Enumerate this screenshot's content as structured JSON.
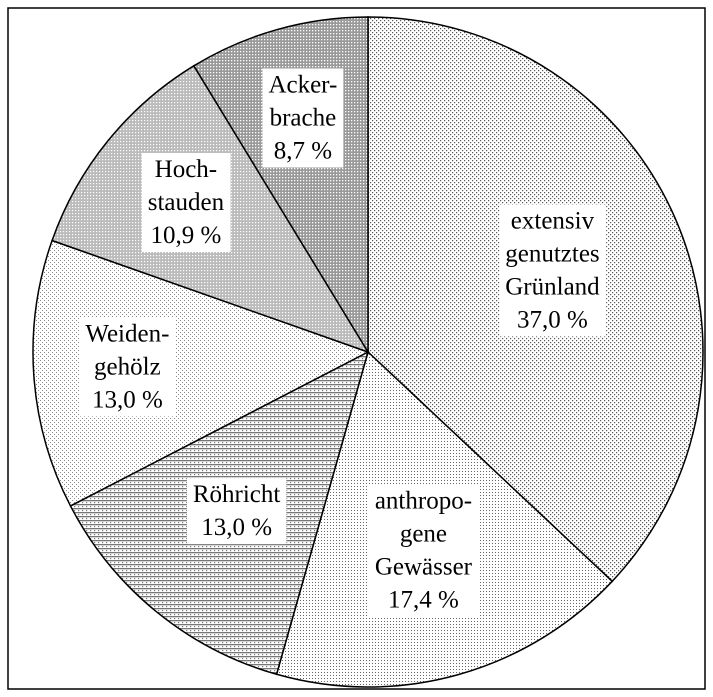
{
  "chart_data": {
    "type": "pie",
    "categories": [
      [
        "extensiv",
        "genutztes",
        "Grünland"
      ],
      [
        "anthropo-",
        "gene",
        "Gewässer"
      ],
      [
        "Röhricht"
      ],
      [
        "Weiden-",
        "gehölz"
      ],
      [
        "Hoch-",
        "stauden"
      ],
      [
        "Acker-",
        "brache"
      ]
    ],
    "values": [
      37.0,
      17.4,
      13.0,
      13.0,
      10.9,
      8.7
    ],
    "value_labels": [
      "37,0 %",
      "17,4 %",
      "13,0 %",
      "13,0 %",
      "10,9 %",
      "8,7 %"
    ]
  }
}
